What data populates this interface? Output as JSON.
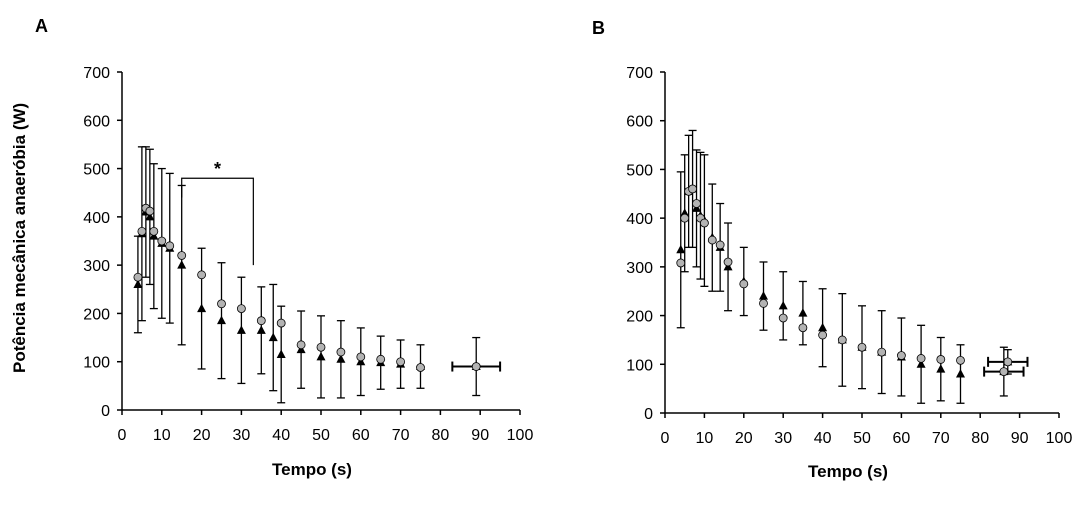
{
  "charts": [
    {
      "id": "A",
      "panel_label": "A",
      "xlabel": "Tempo (s)",
      "ylabel": "Potência mecânica anaeróbia (W)",
      "annotation": "*"
    },
    {
      "id": "B",
      "panel_label": "B",
      "xlabel": "Tempo (s)",
      "ylabel": "",
      "annotation": ""
    }
  ],
  "chart_data": [
    {
      "type": "scatter",
      "title": "",
      "xlabel": "Tempo (s)",
      "ylabel": "Potência mecânica anaeróbia (W)",
      "xlim": [
        0,
        100
      ],
      "ylim": [
        0,
        700
      ],
      "xticks": [
        0,
        10,
        20,
        30,
        40,
        50,
        60,
        70,
        80,
        90,
        100
      ],
      "yticks": [
        0,
        100,
        200,
        300,
        400,
        500,
        600,
        700
      ],
      "grid": false,
      "marker_colors": {
        "circles": "#b3b3b3",
        "triangles": "#000000"
      },
      "circle_series": {
        "x": [
          4,
          5,
          6,
          7,
          8,
          10,
          12,
          15,
          20,
          25,
          30,
          35,
          40,
          45,
          50,
          55,
          60,
          65,
          70,
          75
        ],
        "y": [
          275,
          370,
          418,
          412,
          370,
          350,
          340,
          320,
          280,
          220,
          210,
          185,
          180,
          135,
          130,
          120,
          110,
          105,
          100,
          88
        ],
        "error": [
          0,
          0,
          0,
          0,
          0,
          0,
          0,
          0,
          0,
          0,
          0,
          0,
          0,
          0,
          0,
          0,
          0,
          0,
          0,
          0
        ]
      },
      "triangle_series": {
        "x": [
          4,
          5,
          6,
          7,
          8,
          10,
          12,
          15,
          20,
          25,
          30,
          35,
          38,
          40,
          45,
          50,
          55,
          60,
          65,
          70,
          75
        ],
        "y": [
          260,
          365,
          410,
          400,
          360,
          345,
          335,
          300,
          210,
          185,
          165,
          165,
          150,
          115,
          125,
          110,
          105,
          100,
          98,
          95,
          90
        ],
        "error": [
          100,
          180,
          135,
          140,
          150,
          155,
          155,
          165,
          125,
          120,
          110,
          90,
          110,
          100,
          80,
          85,
          80,
          70,
          55,
          50,
          45
        ]
      },
      "summary_points": [
        {
          "x": 89,
          "y": 90,
          "xerr": 6,
          "yerr": 60
        }
      ],
      "significance_bracket": {
        "x_start": 15,
        "x_end": 33,
        "y_top": 480,
        "label": "*"
      }
    },
    {
      "type": "scatter",
      "title": "",
      "xlabel": "Tempo (s)",
      "ylabel": "",
      "xlim": [
        0,
        100
      ],
      "ylim": [
        0,
        700
      ],
      "xticks": [
        0,
        10,
        20,
        30,
        40,
        50,
        60,
        70,
        80,
        90,
        100
      ],
      "yticks": [
        0,
        100,
        200,
        300,
        400,
        500,
        600,
        700
      ],
      "grid": false,
      "marker_colors": {
        "circles": "#b3b3b3",
        "triangles": "#000000"
      },
      "circle_series": {
        "x": [
          4,
          5,
          6,
          7,
          8,
          9,
          10,
          12,
          14,
          16,
          20,
          25,
          30,
          35,
          40,
          45,
          50,
          55,
          60,
          65,
          70,
          75
        ],
        "y": [
          308,
          400,
          455,
          460,
          430,
          400,
          390,
          355,
          345,
          310,
          265,
          225,
          195,
          175,
          160,
          150,
          135,
          125,
          118,
          112,
          110,
          108
        ],
        "error": [
          0,
          0,
          0,
          0,
          0,
          0,
          0,
          0,
          0,
          0,
          0,
          0,
          0,
          0,
          0,
          0,
          0,
          0,
          0,
          0,
          0,
          0
        ]
      },
      "triangle_series": {
        "x": [
          4,
          5,
          6,
          7,
          8,
          9,
          10,
          12,
          14,
          16,
          20,
          25,
          30,
          35,
          40,
          45,
          50,
          55,
          60,
          65,
          70,
          75
        ],
        "y": [
          335,
          410,
          455,
          460,
          420,
          405,
          395,
          360,
          340,
          300,
          270,
          240,
          220,
          205,
          175,
          150,
          135,
          125,
          115,
          100,
          90,
          80
        ],
        "error": [
          160,
          120,
          115,
          120,
          120,
          130,
          135,
          110,
          90,
          90,
          70,
          70,
          70,
          65,
          80,
          95,
          85,
          85,
          80,
          80,
          65,
          60
        ]
      },
      "summary_points": [
        {
          "x": 87,
          "y": 105,
          "xerr": 5,
          "yerr": 25
        },
        {
          "x": 86,
          "y": 85,
          "xerr": 5,
          "yerr": 50
        }
      ],
      "significance_bracket": null
    }
  ]
}
